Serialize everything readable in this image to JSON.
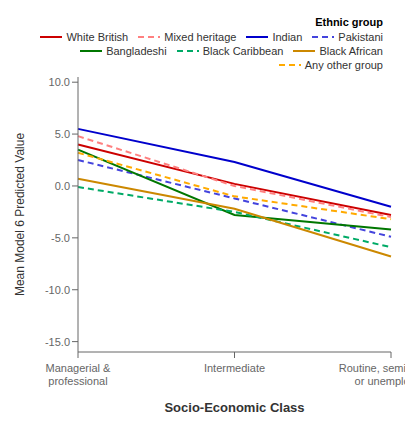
{
  "chart_data": {
    "type": "line",
    "categories": [
      "Managerial &\nprofessional",
      "Intermediate",
      "Routine, semi-routine\nor unemployed"
    ],
    "series": [
      {
        "name": "White British",
        "color": "#cc0000",
        "line_style": "solid",
        "values": [
          4.0,
          0.2,
          -2.8
        ]
      },
      {
        "name": "Mixed heritage",
        "color": "#ff8080",
        "line_style": "dashed",
        "values": [
          4.8,
          0.0,
          -3.0
        ]
      },
      {
        "name": "Indian",
        "color": "#0000cc",
        "line_style": "solid",
        "values": [
          5.5,
          2.3,
          -2.0
        ]
      },
      {
        "name": "Pakistani",
        "color": "#4444dd",
        "line_style": "dashed",
        "values": [
          2.5,
          -1.2,
          -4.9
        ]
      },
      {
        "name": "Bangladeshi",
        "color": "#007700",
        "line_style": "solid",
        "values": [
          3.5,
          -2.8,
          -4.2
        ]
      },
      {
        "name": "Black Caribbean",
        "color": "#00aa66",
        "line_style": "dashed",
        "values": [
          -0.1,
          -2.5,
          -5.9
        ]
      },
      {
        "name": "Black African",
        "color": "#cc8800",
        "line_style": "solid",
        "values": [
          0.7,
          -2.2,
          -6.8
        ]
      },
      {
        "name": "Any other group",
        "color": "#ffaa00",
        "line_style": "dashed",
        "values": [
          3.2,
          -1.0,
          -3.2
        ]
      }
    ],
    "xlabel": "Socio-Economic Class",
    "ylabel": "Mean Model 6 Predicted Value",
    "legend_title": "Ethnic group",
    "legend": "upper right",
    "ylim": [
      -16.0,
      10.5
    ],
    "yticks": [
      {
        "value": -15,
        "label": "-15.0"
      },
      {
        "value": -10,
        "label": "-10.0"
      },
      {
        "value": -5,
        "label": "-5.0"
      },
      {
        "value": 0,
        "label": "0.0"
      },
      {
        "value": 5,
        "label": "5.0"
      },
      {
        "value": 10,
        "label": "10.0"
      }
    ],
    "grid": false
  }
}
